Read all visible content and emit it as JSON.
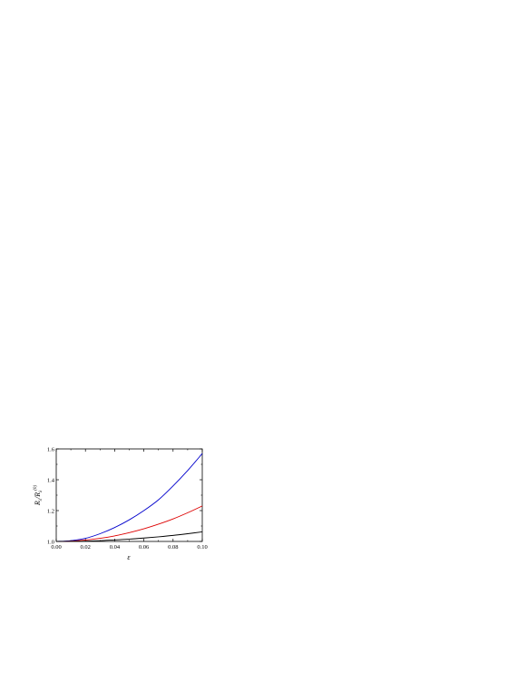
{
  "chart_data": {
    "type": "line",
    "xlabel": "ε",
    "ylabel_parts": {
      "main": "R",
      "sub": "λ",
      "sep": "/",
      "main2": "R",
      "sub2": "λ",
      "sup2": "(0)"
    },
    "xlim": [
      0.0,
      0.1
    ],
    "ylim": [
      1.0,
      1.6
    ],
    "xticks": [
      "0.00",
      "0.02",
      "0.04",
      "0.06",
      "0.08",
      "0.10"
    ],
    "yticks": [
      "1.0",
      "1.2",
      "1.4",
      "1.6"
    ],
    "grid": false,
    "series": [
      {
        "color": "#0000cc",
        "x": [
          0.0,
          0.01,
          0.02,
          0.03,
          0.04,
          0.05,
          0.06,
          0.07,
          0.08,
          0.09,
          0.1
        ],
        "y": [
          1.0,
          1.005,
          1.02,
          1.05,
          1.09,
          1.14,
          1.2,
          1.27,
          1.36,
          1.46,
          1.57
        ]
      },
      {
        "color": "#dd0000",
        "x": [
          0.0,
          0.01,
          0.02,
          0.03,
          0.04,
          0.05,
          0.06,
          0.07,
          0.08,
          0.09,
          0.1
        ],
        "y": [
          1.0,
          1.002,
          1.009,
          1.02,
          1.036,
          1.057,
          1.082,
          1.112,
          1.146,
          1.186,
          1.23
        ]
      },
      {
        "color": "#000000",
        "x": [
          0.0,
          0.01,
          0.02,
          0.03,
          0.04,
          0.05,
          0.06,
          0.07,
          0.08,
          0.09,
          0.1
        ],
        "y": [
          1.0,
          1.001,
          1.002,
          1.005,
          1.01,
          1.015,
          1.022,
          1.03,
          1.039,
          1.05,
          1.062
        ]
      }
    ]
  }
}
